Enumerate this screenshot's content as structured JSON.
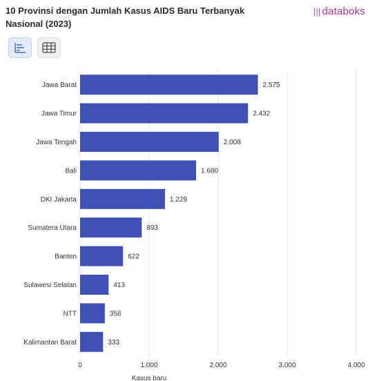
{
  "header": {
    "title": "10 Provinsi dengan Jumlah Kasus AIDS Baru Terbanyak Nasional (2023)",
    "brand": "databoks"
  },
  "toolbar": {
    "chart_view_icon": "bar-chart-icon",
    "table_view_icon": "table-icon"
  },
  "colors": {
    "bar": "#3f51b5",
    "grid": "#e6e6e6",
    "brand": "#b0309a"
  },
  "chart_data": {
    "type": "bar",
    "orientation": "horizontal",
    "title": "10 Provinsi dengan Jumlah Kasus AIDS Baru Terbanyak Nasional (2023)",
    "xlabel": "Kasus baru",
    "ylabel": "",
    "categories": [
      "Jawa Barat",
      "Jawa Timur",
      "Jawa Tengah",
      "Bali",
      "DKI Jakarta",
      "Sumatera Utara",
      "Banten",
      "Sulawesi Selatan",
      "NTT",
      "Kalimantan Barat"
    ],
    "values": [
      2575,
      2432,
      2008,
      1680,
      1229,
      893,
      622,
      413,
      358,
      333
    ],
    "value_labels": [
      "2.575",
      "2.432",
      "2.008",
      "1.680",
      "1.229",
      "893",
      "622",
      "413",
      "358",
      "333"
    ],
    "xlim": [
      0,
      4000
    ],
    "ticks": [
      0,
      1000,
      2000,
      3000,
      4000
    ],
    "tick_labels": [
      "0",
      "1.000",
      "2.000",
      "3.000",
      "4.000"
    ],
    "grid": true,
    "legend": "none"
  }
}
